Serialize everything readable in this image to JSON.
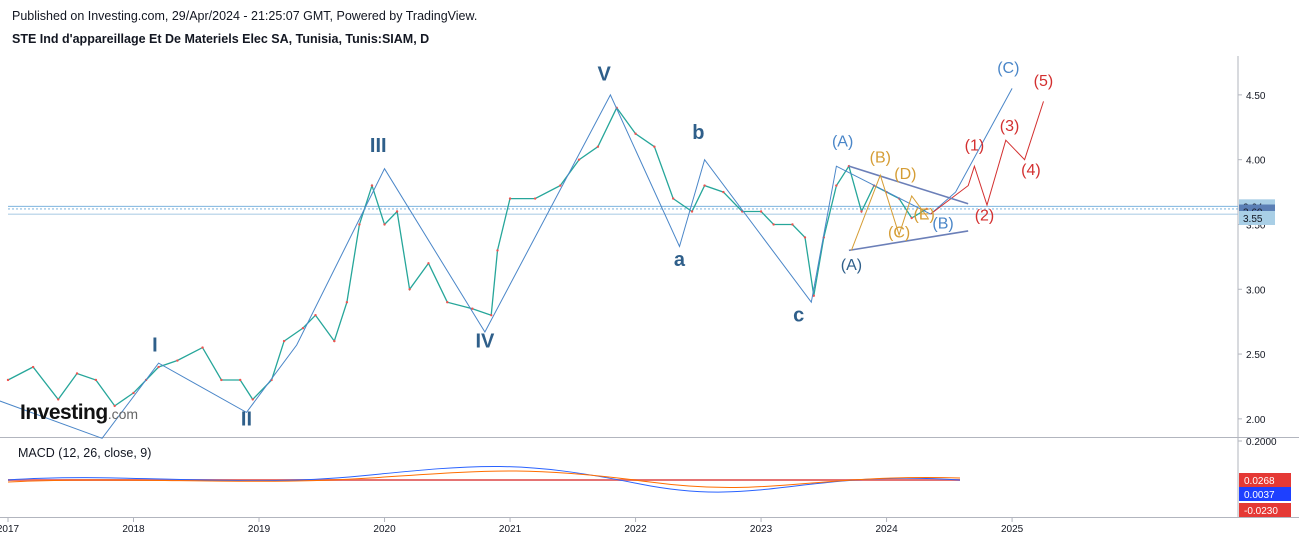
{
  "header": {
    "published": "Published on Investing.com, 29/Apr/2024 - 21:25:07 GMT, Powered by TradingView.",
    "title": "STE Ind d'appareillage Et De Materiels Elec SA, Tunisia, Tunis:SIAM, D"
  },
  "logo": {
    "brand": "Investing",
    "domain": ".com"
  },
  "macd": {
    "label": "MACD (12, 26, close, 9)",
    "ticks": [
      "0.2000"
    ],
    "badges": [
      {
        "text": "0.0268",
        "color": "#e53935"
      },
      {
        "text": "0.0037",
        "color": "#1e40ff"
      },
      {
        "text": "-0.0230",
        "color": "#e53935"
      }
    ]
  },
  "price_badges": [
    {
      "text": "3.64",
      "color": "#a9cfe6",
      "value": 3.64
    },
    {
      "text": "3.60",
      "color": "#5b7fb5",
      "value": 3.6
    },
    {
      "text": "3.55",
      "color": "#a9cfe6",
      "value": 3.55
    }
  ],
  "colors": {
    "wave_blue": "#4a86c8",
    "label_navy": "#2f5f8a",
    "orange": "#d59d35",
    "red": "#d32f2f",
    "candle_up": "#26a69a",
    "candle_down": "#ef5350",
    "dividend": "#8bc34a",
    "split": "#1e88e5"
  },
  "chart_data": {
    "type": "line",
    "y_axis": {
      "ticks": [
        "4.50",
        "4.00",
        "3.50",
        "3.00",
        "2.50",
        "2.00"
      ],
      "range": [
        1.86,
        4.8
      ]
    },
    "x_axis": {
      "ticks": [
        "2017",
        "2018",
        "2019",
        "2020",
        "2021",
        "2022",
        "2023",
        "2024",
        "2025"
      ],
      "range": [
        2017.0,
        2026.8
      ]
    },
    "series": [
      {
        "values": [
          [
            2017.0,
            2.3
          ],
          [
            2017.2,
            2.4
          ],
          [
            2017.4,
            2.15
          ],
          [
            2017.55,
            2.35
          ],
          [
            2017.7,
            2.3
          ],
          [
            2017.85,
            2.1
          ],
          [
            2018.0,
            2.2
          ],
          [
            2018.1,
            2.3
          ],
          [
            2018.2,
            2.4
          ],
          [
            2018.35,
            2.45
          ],
          [
            2018.55,
            2.55
          ],
          [
            2018.7,
            2.3
          ],
          [
            2018.85,
            2.3
          ],
          [
            2018.95,
            2.15
          ],
          [
            2019.1,
            2.3
          ],
          [
            2019.2,
            2.6
          ],
          [
            2019.35,
            2.7
          ],
          [
            2019.45,
            2.8
          ],
          [
            2019.6,
            2.6
          ],
          [
            2019.7,
            2.9
          ],
          [
            2019.8,
            3.5
          ],
          [
            2019.9,
            3.8
          ],
          [
            2020.0,
            3.5
          ],
          [
            2020.1,
            3.6
          ],
          [
            2020.2,
            3.0
          ],
          [
            2020.35,
            3.2
          ],
          [
            2020.5,
            2.9
          ],
          [
            2020.7,
            2.85
          ],
          [
            2020.85,
            2.8
          ],
          [
            2020.9,
            3.3
          ],
          [
            2021.0,
            3.7
          ],
          [
            2021.2,
            3.7
          ],
          [
            2021.4,
            3.8
          ],
          [
            2021.55,
            4.0
          ],
          [
            2021.7,
            4.1
          ],
          [
            2021.85,
            4.4
          ],
          [
            2022.0,
            4.2
          ],
          [
            2022.15,
            4.1
          ],
          [
            2022.3,
            3.7
          ],
          [
            2022.45,
            3.6
          ],
          [
            2022.55,
            3.8
          ],
          [
            2022.7,
            3.75
          ],
          [
            2022.85,
            3.6
          ],
          [
            2023.0,
            3.6
          ],
          [
            2023.1,
            3.5
          ],
          [
            2023.25,
            3.5
          ],
          [
            2023.35,
            3.4
          ],
          [
            2023.42,
            2.95
          ],
          [
            2023.5,
            3.4
          ],
          [
            2023.6,
            3.8
          ],
          [
            2023.7,
            3.95
          ],
          [
            2023.8,
            3.6
          ],
          [
            2023.9,
            3.8
          ],
          [
            2024.0,
            3.75
          ],
          [
            2024.1,
            3.7
          ],
          [
            2024.2,
            3.55
          ],
          [
            2024.32,
            3.62
          ]
        ]
      },
      {
        "values": [
          [
            2016.9,
            2.15
          ],
          [
            2017.75,
            1.85
          ],
          [
            2018.2,
            2.43
          ],
          [
            2018.9,
            2.05
          ],
          [
            2019.3,
            2.57
          ],
          [
            2020.0,
            3.93
          ],
          [
            2020.8,
            2.67
          ],
          [
            2021.8,
            4.5
          ],
          [
            2022.35,
            3.33
          ],
          [
            2022.55,
            4.0
          ],
          [
            2023.4,
            2.9
          ],
          [
            2023.6,
            3.95
          ],
          [
            2024.35,
            3.58
          ]
        ]
      },
      {
        "values": [
          [
            2024.35,
            3.58
          ],
          [
            2024.55,
            3.75
          ],
          [
            2025.0,
            4.55
          ]
        ]
      },
      {
        "values": [
          [
            2024.35,
            3.58
          ],
          [
            2024.65,
            3.8
          ],
          [
            2024.7,
            3.95
          ],
          [
            2024.8,
            3.65
          ],
          [
            2024.95,
            4.15
          ],
          [
            2025.1,
            4.0
          ],
          [
            2025.25,
            4.45
          ]
        ]
      }
    ],
    "annotations": [
      {
        "text": "I",
        "x": 2018.17,
        "y": 2.52
      },
      {
        "text": "II",
        "x": 2018.9,
        "y": 1.95
      },
      {
        "text": "III",
        "x": 2019.95,
        "y": 4.06
      },
      {
        "text": "IV",
        "x": 2020.8,
        "y": 2.55
      },
      {
        "text": "V",
        "x": 2021.75,
        "y": 4.61
      },
      {
        "text": "a",
        "x": 2022.35,
        "y": 3.18
      },
      {
        "text": "b",
        "x": 2022.5,
        "y": 4.16
      },
      {
        "text": "c",
        "x": 2023.3,
        "y": 2.75
      },
      {
        "text": "(A)",
        "x": 2023.65,
        "y": 4.1
      },
      {
        "text": "(B)",
        "x": 2023.95,
        "y": 3.98
      },
      {
        "text": "(C)",
        "x": 2024.1,
        "y": 3.4
      },
      {
        "text": "(D)",
        "x": 2024.15,
        "y": 3.85
      },
      {
        "text": "(E)",
        "x": 2024.3,
        "y": 3.54
      },
      {
        "text": "(A)",
        "x": 2023.72,
        "y": 3.15
      },
      {
        "text": "(B)",
        "x": 2024.45,
        "y": 3.47
      },
      {
        "text": "(C)",
        "x": 2024.97,
        "y": 4.67
      },
      {
        "text": "(1)",
        "x": 2024.7,
        "y": 4.07
      },
      {
        "text": "(2)",
        "x": 2024.78,
        "y": 3.53
      },
      {
        "text": "(3)",
        "x": 2024.98,
        "y": 4.22
      },
      {
        "text": "(4)",
        "x": 2025.15,
        "y": 3.88
      },
      {
        "text": "(5)",
        "x": 2025.25,
        "y": 4.57
      }
    ]
  }
}
